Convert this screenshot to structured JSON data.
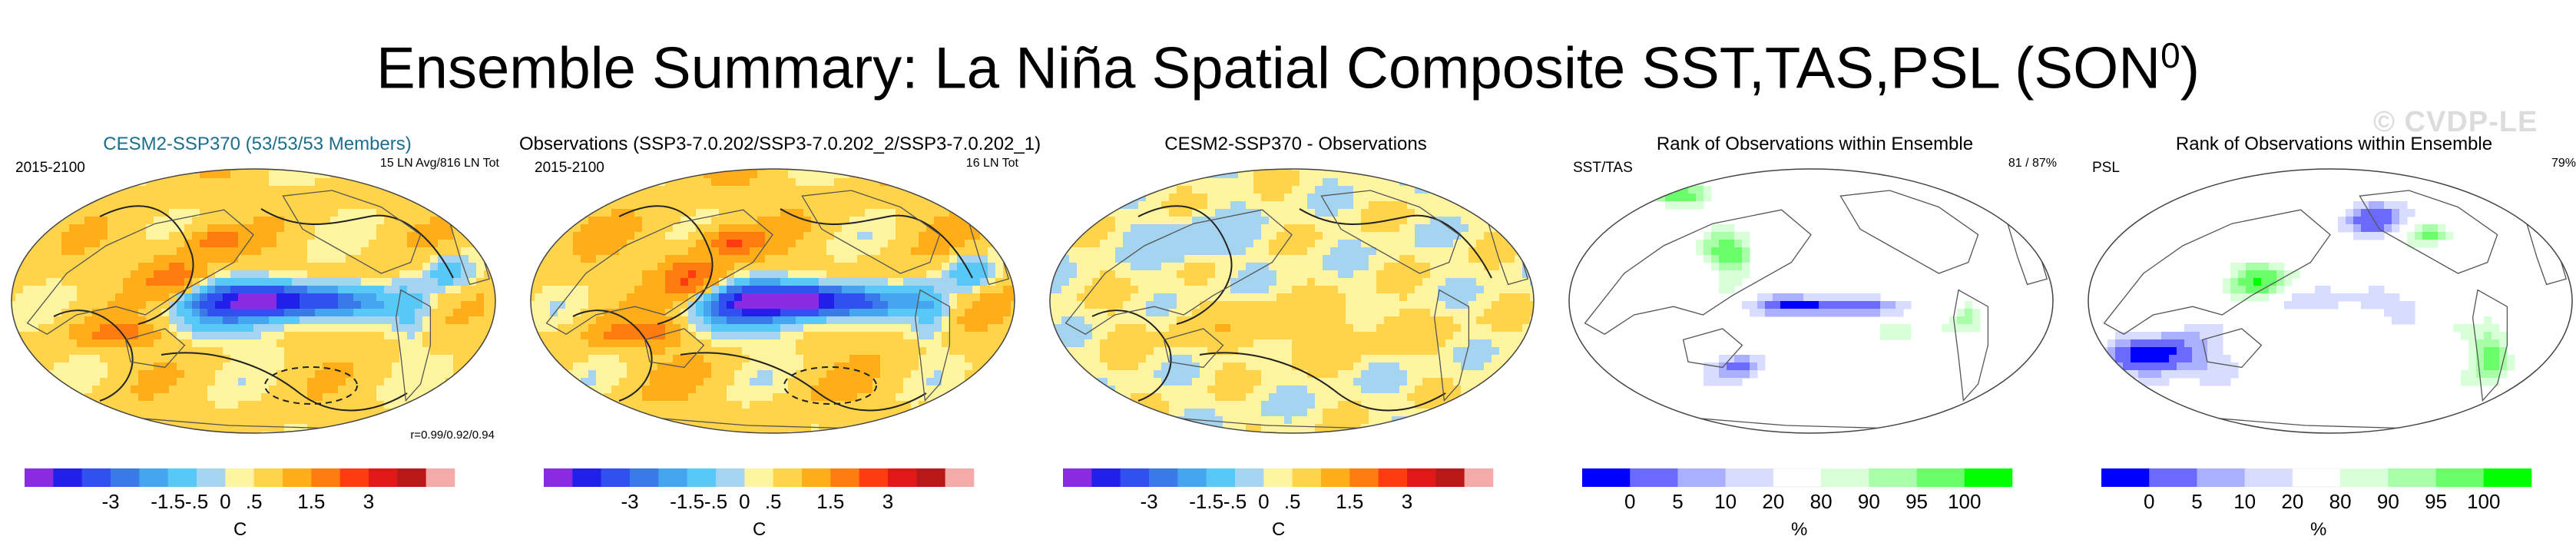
{
  "figure": {
    "title": "Ensemble Summary: La Niña Spatial Composite SST,TAS,PSL (SON",
    "title_superscript": "0",
    "title_close": ")",
    "watermark": "© CVDP-LE"
  },
  "colors": {
    "diverging": [
      "#8a2be2",
      "#2020e8",
      "#3050f0",
      "#3a7ae8",
      "#45a5ee",
      "#58c8f8",
      "#a5d4f0",
      "#fff4a0",
      "#ffd44a",
      "#ffae1a",
      "#ff7c10",
      "#ff3c10",
      "#e01818",
      "#b81818",
      "#f5aaaa"
    ],
    "rank": [
      "#0000ff",
      "#6a6aff",
      "#aab0ff",
      "#d8dcff",
      "#ffffff",
      "#d8ffd8",
      "#a8ffa8",
      "#6aff6a",
      "#00ff00"
    ]
  },
  "chart_data": [
    {
      "type": "heatmap",
      "title": "CESM2-SSP370 (53/53/53 Members)",
      "left_label": "2015-2100",
      "right_label": "15 LN Avg/816 LN Tot",
      "stat": "r=0.99/0.92/0.94",
      "colorbar_ticks": [
        "-3",
        "-1.5",
        "-.5",
        "0",
        ".5",
        "1.5",
        "3"
      ],
      "colorbar_unit": "C"
    },
    {
      "type": "heatmap",
      "title": "Observations (SSP3-7.0.202/SSP3-7.0.202_2/SSP3-7.0.202_1)",
      "left_label": "2015-2100",
      "right_label": "16 LN Tot",
      "colorbar_ticks": [
        "-3",
        "-1.5",
        "-.5",
        "0",
        ".5",
        "1.5",
        "3"
      ],
      "colorbar_unit": "C"
    },
    {
      "type": "heatmap",
      "title": "CESM2-SSP370 - Observations",
      "colorbar_ticks": [
        "-3",
        "-1.5",
        "-.5",
        "0",
        ".5",
        "1.5",
        "3"
      ],
      "colorbar_unit": "C"
    },
    {
      "type": "heatmap",
      "title": "Rank of Observations within Ensemble",
      "left_label": "SST/TAS",
      "right_label": "81 /  87%",
      "colorbar_ticks": [
        "0",
        "5",
        "10",
        "20",
        "80",
        "90",
        "95",
        "100"
      ],
      "colorbar_unit": "%"
    },
    {
      "type": "heatmap",
      "title": "Rank of Observations within Ensemble",
      "left_label": "PSL",
      "right_label": "79%",
      "colorbar_ticks": [
        "0",
        "5",
        "10",
        "20",
        "80",
        "90",
        "95",
        "100"
      ],
      "colorbar_unit": "%"
    }
  ]
}
